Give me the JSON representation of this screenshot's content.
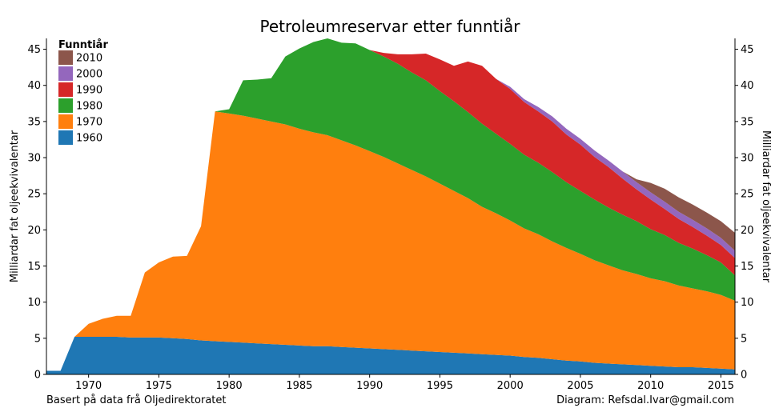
{
  "chart_data": {
    "type": "area",
    "stacked": true,
    "title": "Petroleumreservar etter funntiår",
    "ylabel_left": "Milliardar fat oljeekvivalentar",
    "ylabel_right": "Milliardar fat oljeekvivalentar",
    "xlim": [
      1967,
      2016
    ],
    "ylim": [
      0,
      46.5
    ],
    "xticks": [
      1970,
      1975,
      1980,
      1985,
      1990,
      1995,
      2000,
      2005,
      2010,
      2015
    ],
    "yticks": [
      0,
      5,
      10,
      15,
      20,
      25,
      30,
      35,
      40,
      45
    ],
    "legend": {
      "title": "Funntiår",
      "placement": "top-left",
      "order": [
        "2010",
        "2000",
        "1990",
        "1980",
        "1970",
        "1960"
      ]
    },
    "x": [
      1967,
      1968,
      1969,
      1970,
      1971,
      1972,
      1973,
      1974,
      1975,
      1976,
      1977,
      1978,
      1979,
      1980,
      1981,
      1982,
      1983,
      1984,
      1985,
      1986,
      1987,
      1988,
      1989,
      1990,
      1991,
      1992,
      1993,
      1994,
      1995,
      1996,
      1997,
      1998,
      1999,
      2000,
      2001,
      2002,
      2003,
      2004,
      2005,
      2006,
      2007,
      2008,
      2009,
      2010,
      2011,
      2012,
      2013,
      2014,
      2015,
      2016
    ],
    "series": [
      {
        "name": "1960",
        "color": "#1f77b4",
        "values": [
          0.5,
          0.5,
          5.2,
          5.2,
          5.2,
          5.2,
          5.1,
          5.1,
          5.1,
          5.0,
          4.9,
          4.7,
          4.6,
          4.5,
          4.4,
          4.3,
          4.2,
          4.1,
          4.0,
          3.9,
          3.9,
          3.8,
          3.7,
          3.6,
          3.5,
          3.4,
          3.3,
          3.2,
          3.1,
          3.0,
          2.9,
          2.8,
          2.7,
          2.6,
          2.4,
          2.3,
          2.1,
          1.9,
          1.8,
          1.6,
          1.5,
          1.4,
          1.3,
          1.2,
          1.1,
          1.0,
          1.0,
          0.9,
          0.8,
          0.7
        ]
      },
      {
        "name": "1970",
        "color": "#ff7f0e",
        "values": [
          0,
          0,
          0,
          1.8,
          2.5,
          2.9,
          3.0,
          9.0,
          10.4,
          11.3,
          11.5,
          15.8,
          31.8,
          31.6,
          31.4,
          31.1,
          30.8,
          30.5,
          30.0,
          29.6,
          29.2,
          28.6,
          28.0,
          27.3,
          26.6,
          25.8,
          25.0,
          24.2,
          23.3,
          22.4,
          21.5,
          20.4,
          19.6,
          18.7,
          17.8,
          17.1,
          16.3,
          15.6,
          14.9,
          14.2,
          13.6,
          13.0,
          12.6,
          12.1,
          11.8,
          11.3,
          10.9,
          10.6,
          10.2,
          9.5
        ]
      },
      {
        "name": "1980",
        "color": "#2ca02c",
        "values": [
          0,
          0,
          0,
          0,
          0,
          0,
          0,
          0,
          0,
          0,
          0,
          0,
          0,
          0.6,
          4.9,
          5.4,
          6.0,
          9.4,
          11.1,
          12.5,
          13.4,
          13.5,
          14.1,
          14.0,
          13.9,
          13.8,
          13.5,
          13.3,
          12.8,
          12.4,
          11.9,
          11.5,
          11.0,
          10.6,
          10.2,
          9.9,
          9.6,
          9.1,
          8.7,
          8.4,
          8.0,
          7.7,
          7.3,
          6.8,
          6.4,
          5.9,
          5.5,
          5.0,
          4.5,
          3.5
        ]
      },
      {
        "name": "1990",
        "color": "#d62728",
        "values": [
          0,
          0,
          0,
          0,
          0,
          0,
          0,
          0,
          0,
          0,
          0,
          0,
          0,
          0,
          0,
          0,
          0,
          0,
          0,
          0,
          0,
          0,
          0,
          0,
          0.5,
          1.3,
          2.5,
          3.7,
          4.4,
          4.9,
          7.0,
          8.0,
          7.6,
          7.6,
          7.3,
          7.1,
          7.0,
          6.6,
          6.4,
          5.9,
          5.6,
          5.0,
          4.4,
          4.1,
          3.6,
          3.3,
          3.0,
          2.7,
          2.4,
          2.4
        ]
      },
      {
        "name": "2000",
        "color": "#9467bd",
        "values": [
          0,
          0,
          0,
          0,
          0,
          0,
          0,
          0,
          0,
          0,
          0,
          0,
          0,
          0,
          0,
          0,
          0,
          0,
          0,
          0,
          0,
          0,
          0,
          0,
          0,
          0,
          0,
          0,
          0,
          0,
          0,
          0,
          0,
          0.3,
          0.4,
          0.6,
          0.7,
          0.8,
          0.8,
          0.9,
          0.9,
          1.0,
          1.0,
          1.0,
          1.0,
          1.0,
          1.0,
          1.0,
          1.0,
          1.0
        ]
      },
      {
        "name": "2010",
        "color": "#8c564b",
        "values": [
          0,
          0,
          0,
          0,
          0,
          0,
          0,
          0,
          0,
          0,
          0,
          0,
          0,
          0,
          0,
          0,
          0,
          0,
          0,
          0,
          0,
          0,
          0,
          0,
          0,
          0,
          0,
          0,
          0,
          0,
          0,
          0,
          0,
          0,
          0,
          0,
          0,
          0,
          0,
          0,
          0,
          0,
          0.4,
          1.3,
          1.8,
          2.0,
          2.1,
          2.2,
          2.3,
          2.5
        ]
      }
    ]
  },
  "footer": {
    "left": "Basert på data frå Oljedirektoratet",
    "right": "Diagram: Refsdal.Ivar@gmail.com"
  }
}
